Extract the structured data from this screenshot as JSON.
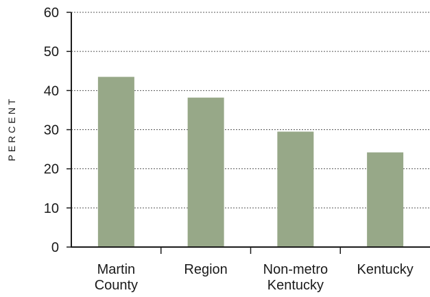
{
  "chart_data": {
    "type": "bar",
    "title": "",
    "xlabel": "",
    "ylabel": "PERCENT",
    "categories": [
      [
        "Martin",
        "County"
      ],
      [
        "Region"
      ],
      [
        "Non-metro",
        "Kentucky"
      ],
      [
        "Kentucky"
      ]
    ],
    "values": [
      43.5,
      38.2,
      29.5,
      24.2
    ],
    "ylim": [
      0,
      60
    ],
    "yticks": [
      "0",
      "10",
      "20",
      "30",
      "40",
      "50",
      "60"
    ],
    "grid": true,
    "legend": "none",
    "colors": {
      "bar": "#97a888",
      "axis": "#1a1a1a",
      "grid": "#555555"
    }
  }
}
